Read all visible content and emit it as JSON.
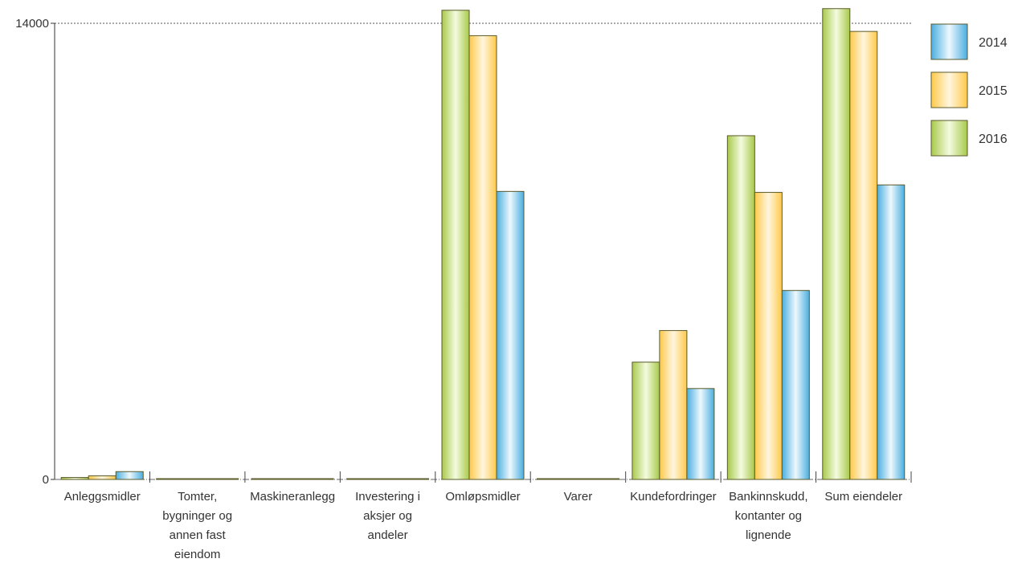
{
  "chart_data": {
    "type": "bar",
    "title": "",
    "xlabel": "",
    "ylabel": "",
    "ylim": [
      0,
      14000
    ],
    "y_ticks": [
      "0",
      "14000"
    ],
    "grid": "dotted line at 14000",
    "legend_position": "right",
    "categories": [
      [
        "Anleggsmidler"
      ],
      [
        "Tomter,",
        "bygninger og",
        "annen fast",
        "eiendom"
      ],
      [
        "Maskineranlegg"
      ],
      [
        "Investering i",
        "aksjer og",
        "andeler"
      ],
      [
        "Omløpsmidler"
      ],
      [
        "Varer"
      ],
      [
        "Kundefordringer"
      ],
      [
        "Bankinnskudd,",
        "kontanter og",
        "lignende"
      ],
      [
        "Sum eiendeler"
      ]
    ],
    "series": [
      {
        "name": "2016",
        "color": "#c6df7a",
        "values": [
          60,
          0,
          0,
          0,
          14400,
          0,
          3600,
          10550,
          14450
        ]
      },
      {
        "name": "2015",
        "color": "#ffd978",
        "values": [
          110,
          0,
          0,
          0,
          13620,
          0,
          4570,
          8810,
          13750
        ]
      },
      {
        "name": "2014",
        "color": "#7cc7ea",
        "values": [
          240,
          0,
          0,
          0,
          8840,
          0,
          2790,
          5800,
          9040
        ]
      }
    ],
    "legend": [
      {
        "name": "2014",
        "color": "#7cc7ea"
      },
      {
        "name": "2015",
        "color": "#ffd978"
      },
      {
        "name": "2016",
        "color": "#c6df7a"
      }
    ]
  }
}
